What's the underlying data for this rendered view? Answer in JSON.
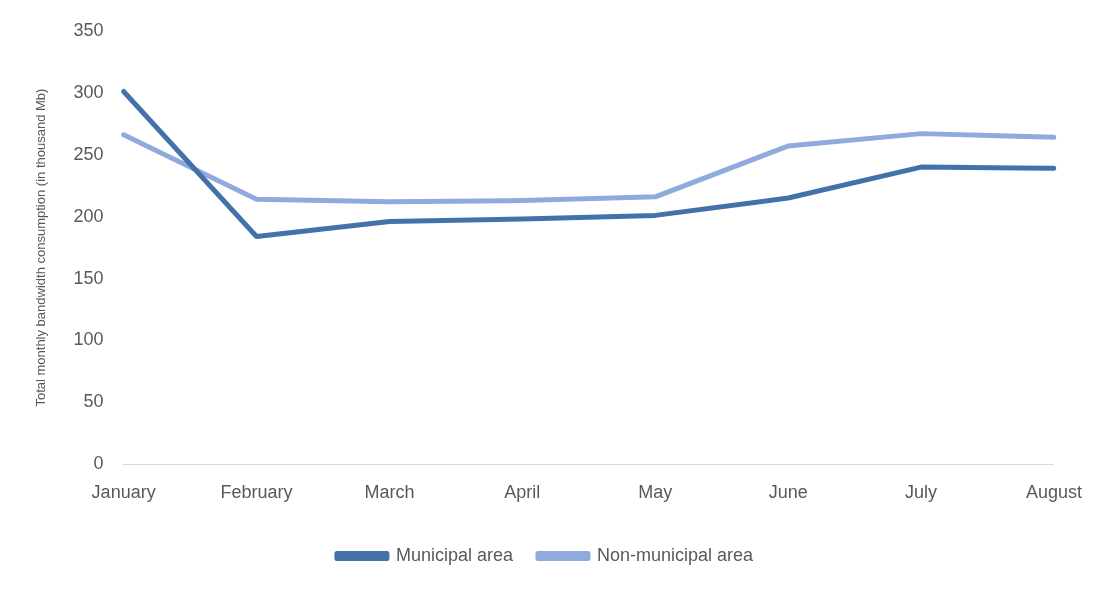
{
  "chart_data": {
    "type": "line",
    "ylabel": "Total monthly bandwidth consumption (in thousand Mb)",
    "categories": [
      "January",
      "February",
      "March",
      "April",
      "May",
      "June",
      "July",
      "August"
    ],
    "series": [
      {
        "name": "Municipal area",
        "color": "#4472a8",
        "values": [
          301,
          184,
          196,
          198,
          201,
          215,
          240,
          239
        ]
      },
      {
        "name": "Non-municipal area",
        "color": "#8faadc",
        "values": [
          266,
          214,
          212,
          213,
          216,
          257,
          267,
          264
        ]
      }
    ],
    "ylim": [
      0,
      350
    ],
    "yticks": [
      0,
      50,
      100,
      150,
      200,
      250,
      300,
      350
    ],
    "grid": false,
    "legend": "bottom",
    "marker": "none",
    "line_style": "solid"
  }
}
